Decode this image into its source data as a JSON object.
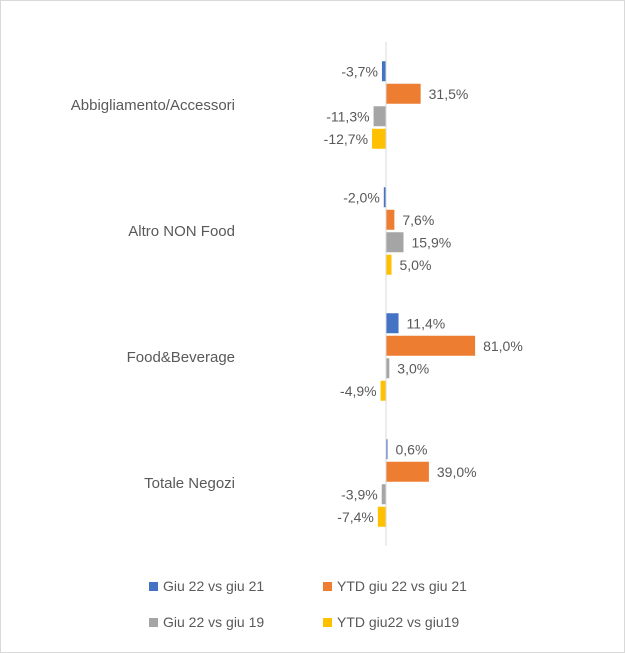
{
  "chart_data": {
    "type": "bar",
    "orientation": "horizontal",
    "categories": [
      "Abbigliamento/Accessori",
      "Altro NON Food",
      "Food&Beverage",
      "Totale Negozi"
    ],
    "series": [
      {
        "name": "Giu 22 vs giu 21",
        "color": "#4472C4",
        "values": [
          -3.7,
          -2.0,
          11.4,
          0.6
        ],
        "labels": [
          "-3,7%",
          "-2,0%",
          "11,4%",
          "0,6%"
        ]
      },
      {
        "name": "YTD giu 22 vs giu 21",
        "color": "#ED7D31",
        "values": [
          31.5,
          7.6,
          81.0,
          39.0
        ],
        "labels": [
          "31,5%",
          "7,6%",
          "81,0%",
          "39,0%"
        ]
      },
      {
        "name": "Giu 22 vs giu 19",
        "color": "#A5A5A5",
        "values": [
          -11.3,
          15.9,
          3.0,
          -3.9
        ],
        "labels": [
          "-11,3%",
          "15,9%",
          "3,0%",
          "-3,9%"
        ]
      },
      {
        "name": "YTD giu22 vs giu19",
        "color": "#FFC000",
        "values": [
          -12.7,
          5.0,
          -4.9,
          -7.4
        ],
        "labels": [
          "-12,7%",
          "5,0%",
          "-4,9%",
          "-7,4%"
        ]
      }
    ],
    "title": "",
    "xlabel": "",
    "ylabel": "",
    "grid": false,
    "data_labels": true,
    "legend_position": "bottom"
  }
}
